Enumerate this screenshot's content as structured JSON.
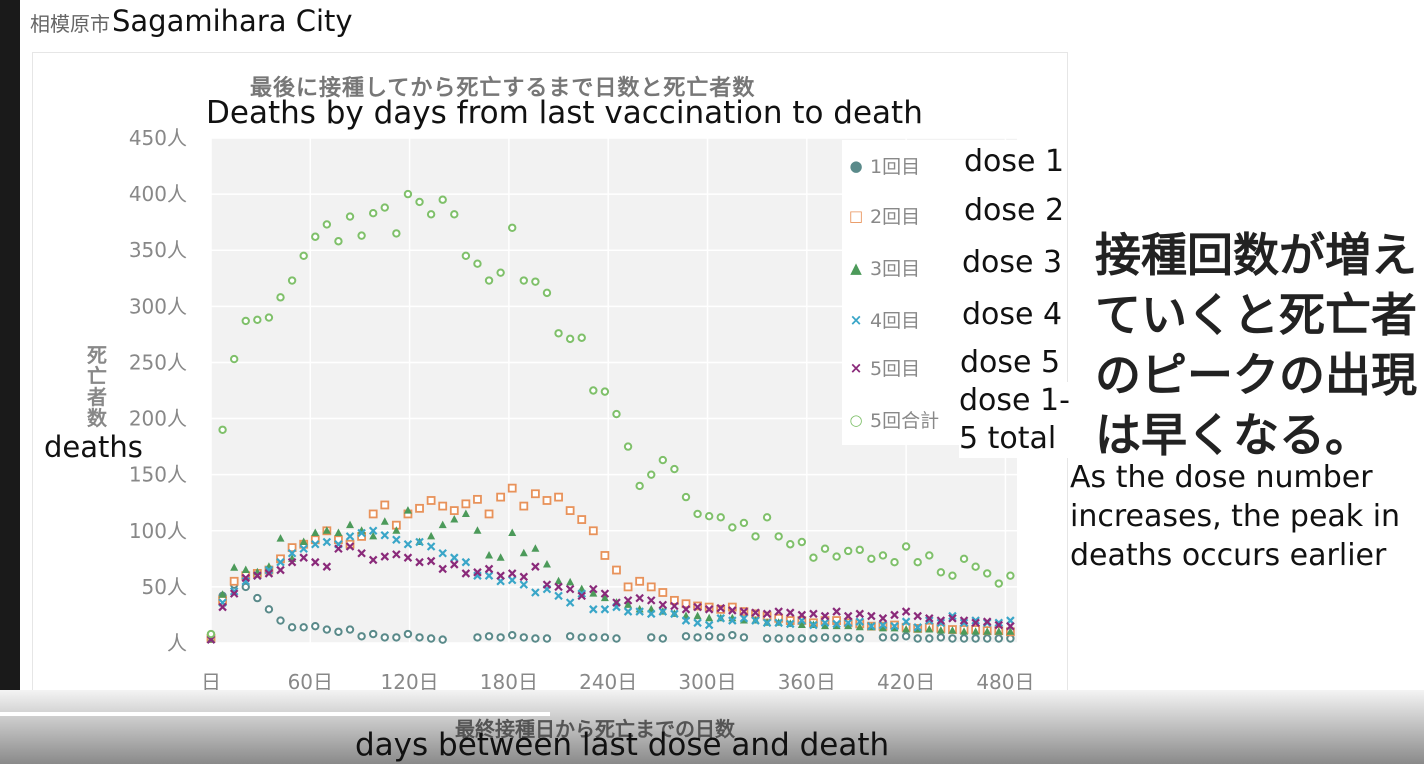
{
  "city": {
    "jp": "相模原市",
    "en": "Sagamihara City"
  },
  "annotations": {
    "title_en": "Deaths by days from last vaccination to death",
    "ylabel_en": "deaths",
    "xlabel_en": "days between last dose and death",
    "note_jp": "接種回数が増えていくと死亡者のピークの出現は早くなる。",
    "note_en": "As the dose number increases, the peak in deaths occurs earlier"
  },
  "legend_en": [
    "dose 1",
    "dose 2",
    "dose 3",
    "dose 4",
    "dose 5",
    "dose 1-5 total"
  ],
  "chart_data": {
    "type": "scatter",
    "title": "最後に接種してから死亡するまで日数と死亡者数",
    "xlabel": "最終接種日から死亡までの日数",
    "ylabel": "死亡者数",
    "xlim": [
      0,
      487
    ],
    "ylim": [
      0,
      450
    ],
    "grid": true,
    "legend_position": "top-right",
    "x_ticks": [
      0,
      60,
      120,
      180,
      240,
      300,
      360,
      420,
      480
    ],
    "x_tick_labels": [
      "日",
      "60日",
      "120日",
      "180日",
      "240日",
      "300日",
      "360日",
      "420日",
      "480日"
    ],
    "y_ticks": [
      0,
      50,
      100,
      150,
      200,
      250,
      300,
      350,
      400,
      450
    ],
    "y_tick_labels": [
      "人",
      "50人",
      "100人",
      "150人",
      "200人",
      "250人",
      "300人",
      "350人",
      "400人",
      "450人"
    ],
    "x": [
      0,
      7,
      14,
      21,
      28,
      35,
      42,
      49,
      56,
      63,
      70,
      77,
      84,
      91,
      98,
      105,
      112,
      119,
      126,
      133,
      140,
      147,
      154,
      161,
      168,
      175,
      182,
      189,
      196,
      203,
      210,
      217,
      224,
      231,
      238,
      245,
      252,
      259,
      266,
      273,
      280,
      287,
      294,
      301,
      308,
      315,
      322,
      329,
      336,
      343,
      350,
      357,
      364,
      371,
      378,
      385,
      392,
      399,
      406,
      413,
      420,
      427,
      434,
      441,
      448,
      455,
      462,
      469,
      476,
      483
    ],
    "series": [
      {
        "name": "1回目",
        "marker": "circle",
        "color": "#5a8a8a",
        "values": [
          5,
          42,
          52,
          50,
          40,
          30,
          20,
          14,
          14,
          15,
          12,
          10,
          12,
          6,
          8,
          5,
          5,
          8,
          5,
          4,
          3,
          null,
          null,
          5,
          6,
          5,
          7,
          5,
          4,
          4,
          null,
          6,
          5,
          5,
          5,
          4,
          null,
          null,
          5,
          4,
          null,
          6,
          5,
          6,
          5,
          7,
          5,
          null,
          4,
          4,
          4,
          4,
          4,
          5,
          4,
          5,
          4,
          null,
          5,
          5,
          6,
          4,
          4,
          5,
          4,
          4,
          4,
          4,
          4,
          4
        ]
      },
      {
        "name": "2回目",
        "marker": "square",
        "color": "#e8925a",
        "values": [
          4,
          38,
          55,
          60,
          62,
          65,
          75,
          85,
          88,
          92,
          100,
          92,
          88,
          95,
          115,
          123,
          105,
          115,
          120,
          127,
          122,
          118,
          124,
          128,
          115,
          130,
          138,
          122,
          133,
          127,
          130,
          118,
          110,
          100,
          78,
          65,
          50,
          55,
          50,
          45,
          38,
          35,
          33,
          32,
          30,
          32,
          28,
          26,
          24,
          22,
          20,
          20,
          18,
          20,
          20,
          18,
          17,
          15,
          15,
          16,
          14,
          13,
          14,
          13,
          12,
          12,
          12,
          11,
          11,
          10
        ]
      },
      {
        "name": "3回目",
        "marker": "triangle",
        "color": "#4c9a5a",
        "values": [
          3,
          43,
          67,
          65,
          63,
          68,
          93,
          75,
          90,
          98,
          100,
          98,
          105,
          100,
          95,
          108,
          100,
          118,
          90,
          95,
          105,
          110,
          115,
          100,
          78,
          76,
          98,
          80,
          84,
          70,
          55,
          54,
          48,
          44,
          40,
          36,
          34,
          30,
          30,
          28,
          26,
          24,
          24,
          22,
          22,
          22,
          20,
          20,
          18,
          18,
          17,
          16,
          16,
          15,
          15,
          15,
          14,
          14,
          13,
          13,
          12,
          12,
          12,
          11,
          11,
          10,
          10,
          10,
          10,
          10
        ]
      },
      {
        "name": "4回目",
        "marker": "cross",
        "color": "#3aa6c8",
        "values": [
          3,
          36,
          46,
          55,
          60,
          65,
          72,
          80,
          84,
          88,
          90,
          88,
          95,
          98,
          100,
          96,
          92,
          88,
          90,
          86,
          80,
          76,
          72,
          60,
          60,
          55,
          56,
          52,
          45,
          48,
          42,
          36,
          44,
          30,
          30,
          32,
          28,
          28,
          26,
          28,
          26,
          20,
          18,
          16,
          22,
          20,
          22,
          20,
          18,
          18,
          17,
          20,
          16,
          18,
          17,
          18,
          19,
          15,
          16,
          15,
          19,
          14,
          20,
          18,
          24,
          18,
          20,
          18,
          18,
          20
        ]
      },
      {
        "name": "5回目",
        "marker": "cross",
        "color": "#8a2a7a",
        "values": [
          3,
          32,
          44,
          58,
          60,
          62,
          65,
          72,
          76,
          72,
          68,
          84,
          86,
          80,
          74,
          77,
          79,
          76,
          72,
          73,
          66,
          70,
          62,
          63,
          66,
          60,
          62,
          59,
          68,
          52,
          50,
          48,
          42,
          48,
          44,
          36,
          38,
          40,
          38,
          34,
          33,
          30,
          32,
          30,
          31,
          29,
          28,
          27,
          26,
          28,
          27,
          25,
          26,
          24,
          28,
          24,
          26,
          24,
          22,
          25,
          28,
          24,
          22,
          20,
          22,
          20,
          18,
          19,
          16,
          15
        ]
      },
      {
        "name": "5回合計",
        "marker": "circle",
        "color": "#7fc06a",
        "values": [
          8,
          190,
          253,
          287,
          288,
          290,
          308,
          323,
          345,
          362,
          373,
          358,
          380,
          363,
          383,
          388,
          365,
          400,
          393,
          382,
          395,
          382,
          345,
          338,
          323,
          330,
          370,
          323,
          322,
          312,
          276,
          271,
          272,
          225,
          224,
          204,
          175,
          140,
          150,
          163,
          155,
          130,
          115,
          113,
          112,
          103,
          107,
          95,
          112,
          95,
          88,
          90,
          76,
          84,
          77,
          82,
          83,
          75,
          78,
          72,
          86,
          72,
          78,
          63,
          60,
          75,
          68,
          62,
          53,
          60
        ]
      }
    ]
  }
}
